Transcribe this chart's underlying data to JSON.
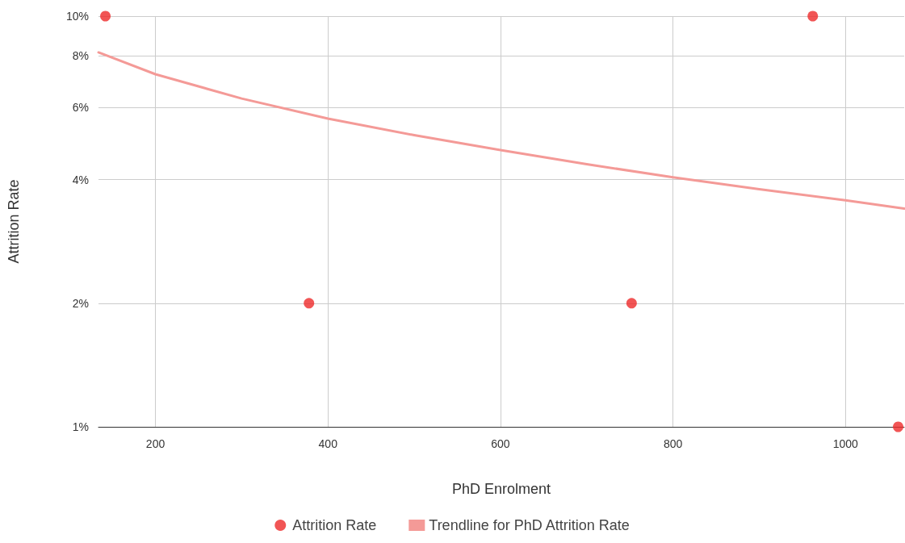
{
  "chart_data": {
    "type": "scatter",
    "xlabel": "PhD Enrolment",
    "ylabel": "Attrition Rate",
    "series": [
      {
        "name": "Attrition Rate",
        "color": "#ee2a2a",
        "marker": "circle",
        "x": [
          142,
          378,
          752,
          962,
          1061
        ],
        "values": [
          10,
          2,
          2,
          10,
          1
        ]
      },
      {
        "name": "Trendline for PhD Attrition Rate",
        "type": "line",
        "color": "#f49a97",
        "marker": "none",
        "line_style": "solid",
        "x": [
          134,
          200,
          300,
          400,
          500,
          600,
          700,
          800,
          900,
          1000,
          1068
        ],
        "values": [
          8.16,
          7.22,
          6.3,
          5.63,
          5.13,
          4.72,
          4.36,
          4.05,
          3.79,
          3.56,
          3.4
        ]
      }
    ],
    "xlim": [
      134,
      1068
    ],
    "xticks": [
      200,
      400,
      600,
      800,
      1000
    ],
    "ylim": [
      1,
      10
    ],
    "yticks": [
      {
        "value": 1,
        "label": "1%"
      },
      {
        "value": 2,
        "label": "2%"
      },
      {
        "value": 4,
        "label": "4%"
      },
      {
        "value": 6,
        "label": "6%"
      },
      {
        "value": 8,
        "label": "8%"
      },
      {
        "value": 10,
        "label": "10%"
      }
    ],
    "log": "y",
    "grid": true,
    "legend": "bottom"
  }
}
